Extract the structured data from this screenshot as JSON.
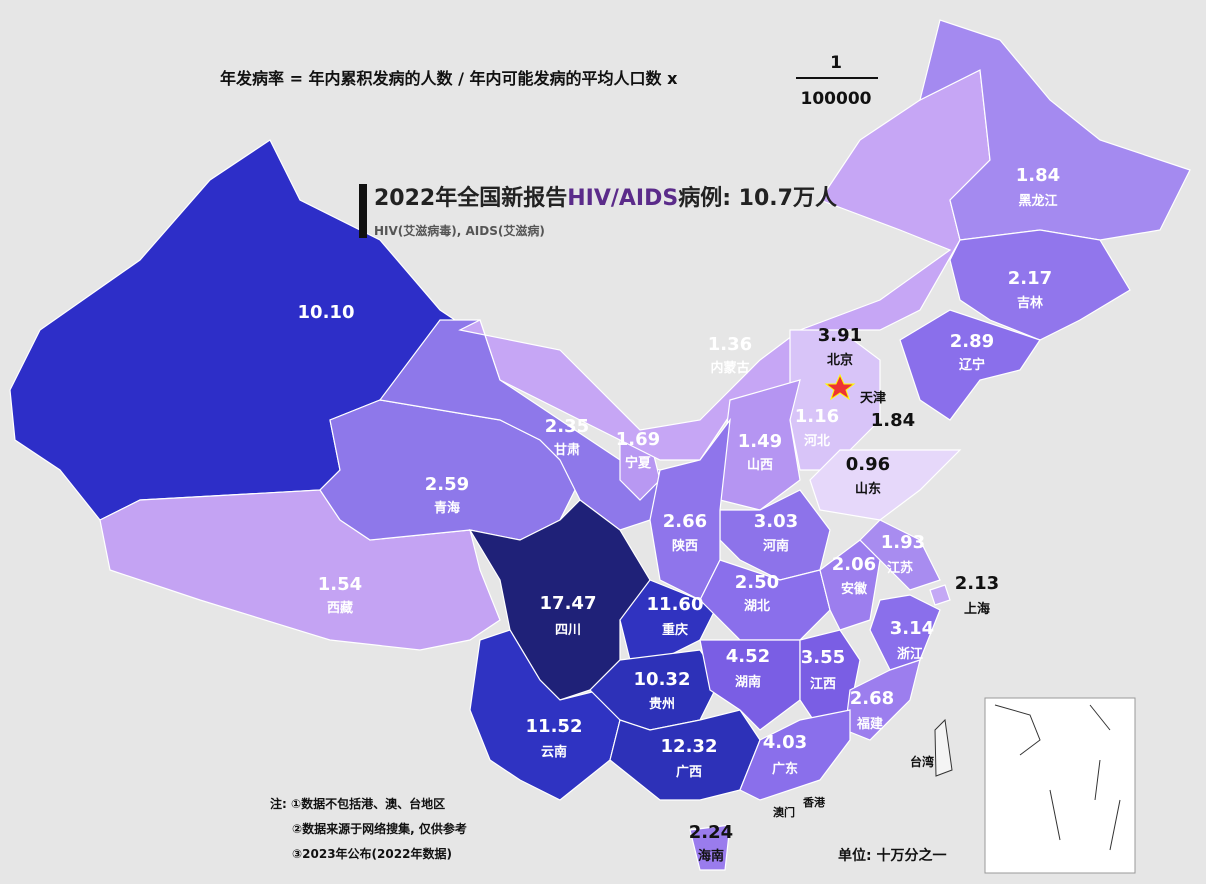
{
  "formula": {
    "lhs": "年发病率 = 年内累积发病的人数 / 年内可能发病的平均人口数 x",
    "numerator": "1",
    "denominator": "100000"
  },
  "title": {
    "prefix": "2022年全国新报告",
    "highlight": "HIV/AIDS",
    "suffix": "病例: 10.7万人"
  },
  "subtitle": "HIV(艾滋病毒), AIDS(艾滋病)",
  "regions": [
    {
      "name": null,
      "value": "10.10",
      "color": "#2d2ec8"
    },
    {
      "name": "西藏",
      "value": "1.54",
      "color": "#c4a3f3"
    },
    {
      "name": "青海",
      "value": "2.59",
      "color": "#8e78ea"
    },
    {
      "name": "甘肃",
      "value": "2.35",
      "color": "#8e78ea"
    },
    {
      "name": "宁夏",
      "value": "1.69",
      "color": "#b898f2"
    },
    {
      "name": "内蒙古",
      "value": "1.36",
      "color": "#c6a6f5"
    },
    {
      "name": "黑龙江",
      "value": "1.84",
      "color": "#a48af0"
    },
    {
      "name": "吉林",
      "value": "2.17",
      "color": "#9176ec"
    },
    {
      "name": "辽宁",
      "value": "2.89",
      "color": "#8a6feb"
    },
    {
      "name": "北京",
      "value": "3.91",
      "color": "#5a45d6"
    },
    {
      "name": "天津",
      "value": "1.84",
      "color": "#c8b0f5"
    },
    {
      "name": "河北",
      "value": "1.16",
      "color": "#d8c4f8"
    },
    {
      "name": "山西",
      "value": "1.49",
      "color": "#b595f2"
    },
    {
      "name": "山东",
      "value": "0.96",
      "color": "#e6d8fa"
    },
    {
      "name": "河南",
      "value": "3.03",
      "color": "#8d73ea"
    },
    {
      "name": "陕西",
      "value": "2.66",
      "color": "#8f75eb"
    },
    {
      "name": "四川",
      "value": "17.47",
      "color": "#1f2178"
    },
    {
      "name": "重庆",
      "value": "11.60",
      "color": "#3033c0"
    },
    {
      "name": "云南",
      "value": "11.52",
      "color": "#2f33c2"
    },
    {
      "name": "贵州",
      "value": "10.32",
      "color": "#2d31b8"
    },
    {
      "name": "广西",
      "value": "12.32",
      "color": "#2d31b8"
    },
    {
      "name": "湖北",
      "value": "2.50",
      "color": "#8a6feb"
    },
    {
      "name": "湖南",
      "value": "4.52",
      "color": "#7a5ee4"
    },
    {
      "name": "江西",
      "value": "3.55",
      "color": "#7a5ee4"
    },
    {
      "name": "安徽",
      "value": "2.06",
      "color": "#9c7eee"
    },
    {
      "name": "江苏",
      "value": "1.93",
      "color": "#a88cf0"
    },
    {
      "name": "上海",
      "value": "2.13",
      "color": "#c4a8f5"
    },
    {
      "name": "浙江",
      "value": "3.14",
      "color": "#8a6feb"
    },
    {
      "name": "福建",
      "value": "2.68",
      "color": "#9c7eee"
    },
    {
      "name": "广东",
      "value": "4.03",
      "color": "#8a6feb"
    },
    {
      "name": "海南",
      "value": "2.24",
      "color": "#9a7ced"
    }
  ],
  "other_labels": [
    "台湾",
    "香港",
    "澳门"
  ],
  "notes": [
    "注: ①数据不包括港、澳、台地区",
    "②数据来源于网络搜集, 仅供参考",
    "③2023年公布(2022年数据)"
  ],
  "unit": "单位: 十万分之一"
}
